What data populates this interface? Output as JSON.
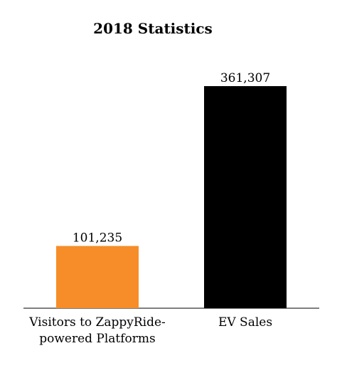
{
  "chart_data": {
    "type": "bar",
    "title": "2018 Statistics",
    "categories": [
      "Visitors to ZappyRide-powered Platforms",
      "EV Sales"
    ],
    "category_lines": [
      [
        "Visitors to ZappyRide-",
        "powered Platforms"
      ],
      [
        "EV Sales"
      ]
    ],
    "values": [
      101235,
      361307
    ],
    "value_labels": [
      "101,235",
      "361,307"
    ],
    "colors": [
      "#f68d28",
      "#000000"
    ],
    "xlabel": "",
    "ylabel": "",
    "ylim": [
      0,
      400000
    ],
    "grid": false,
    "legend": "none"
  }
}
